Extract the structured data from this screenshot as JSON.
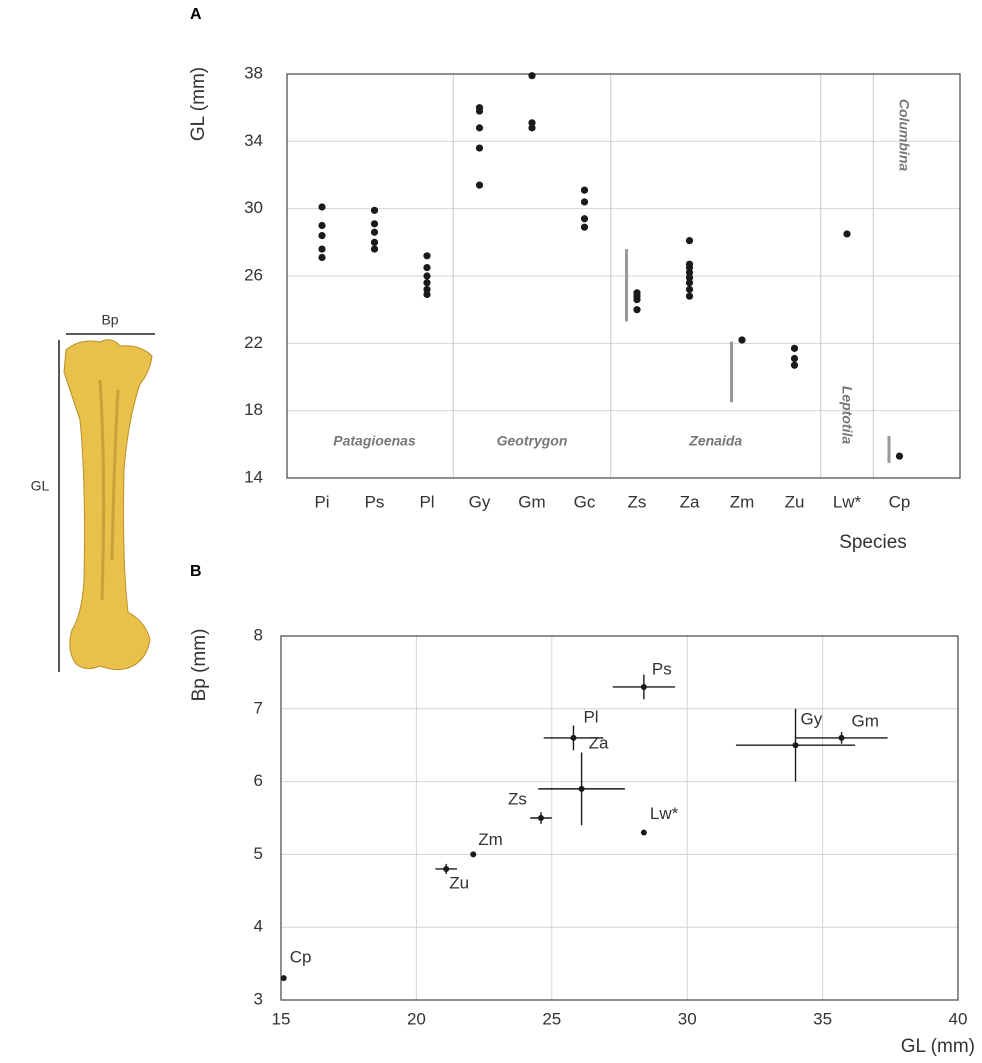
{
  "illustration": {
    "labels": [
      "Bp",
      "GL"
    ]
  },
  "chart_data": [
    {
      "type": "strip",
      "panel": "A",
      "categories": [
        "Pi",
        "Ps",
        "Pl",
        "Gy",
        "Gm",
        "Gc",
        "Zs",
        "Za",
        "Zm",
        "Zu",
        "Lw*",
        "Cp"
      ],
      "points": [
        [
          30.1,
          29.0,
          28.4,
          27.6,
          27.1
        ],
        [
          29.9,
          29.1,
          28.6,
          28.0,
          27.6
        ],
        [
          27.2,
          26.5,
          26.0,
          25.6,
          25.2,
          24.9
        ],
        [
          36.0,
          35.8,
          34.8,
          33.6,
          31.4
        ],
        [
          37.9,
          35.1,
          34.8
        ],
        [
          31.1,
          30.4,
          29.4,
          28.9
        ],
        [
          25.0,
          24.8,
          24.6,
          24.0
        ],
        [
          28.1,
          26.7,
          26.5,
          26.2,
          25.9,
          25.6,
          25.2,
          24.8
        ],
        [
          22.2
        ],
        [
          21.7,
          21.1,
          20.7
        ],
        [
          28.5
        ],
        [
          15.3
        ]
      ],
      "ranges": [
        null,
        null,
        null,
        null,
        null,
        null,
        [
          23.3,
          27.6
        ],
        null,
        [
          18.5,
          22.1
        ],
        null,
        null,
        [
          14.9,
          16.5
        ]
      ],
      "groups": [
        "Patagioenas",
        "Geotrygon",
        "Zenaida",
        "Leptotila",
        "Columbina"
      ],
      "ylim": [
        14,
        38
      ],
      "yticks": [
        14,
        18,
        22,
        26,
        30,
        34,
        38
      ],
      "grid": true,
      "ylabel": "GL (mm)",
      "xlabel": "Species",
      "color": "#1a1a1a",
      "range_color": "#999999"
    },
    {
      "type": "errorbar-scatter",
      "panel": "B",
      "labels": [
        "Ps",
        "Pl",
        "Gy",
        "Gm",
        "Za",
        "Zs",
        "Lw*",
        "Zm",
        "Zu",
        "Cp"
      ],
      "x": [
        28.4,
        25.8,
        34.0,
        35.7,
        26.1,
        24.6,
        28.4,
        22.1,
        21.1,
        15.1
      ],
      "y": [
        7.3,
        6.6,
        6.5,
        6.6,
        5.9,
        5.5,
        5.3,
        5.0,
        4.8,
        3.3
      ],
      "xerr": [
        1.15,
        1.1,
        2.2,
        1.7,
        1.6,
        0.4,
        null,
        null,
        0.4,
        null
      ],
      "yerr": [
        0.17,
        0.17,
        0.5,
        0.08,
        0.5,
        0.08,
        null,
        null,
        0.07,
        null
      ],
      "xlim": [
        15,
        40
      ],
      "ylim": [
        3,
        8
      ],
      "xticks": [
        15,
        20,
        25,
        30,
        35,
        40
      ],
      "yticks": [
        3,
        4,
        5,
        6,
        7,
        8
      ],
      "grid": true,
      "xlabel": "GL (mm)",
      "ylabel": "Bp (mm)",
      "color": "#1a1a1a"
    }
  ]
}
